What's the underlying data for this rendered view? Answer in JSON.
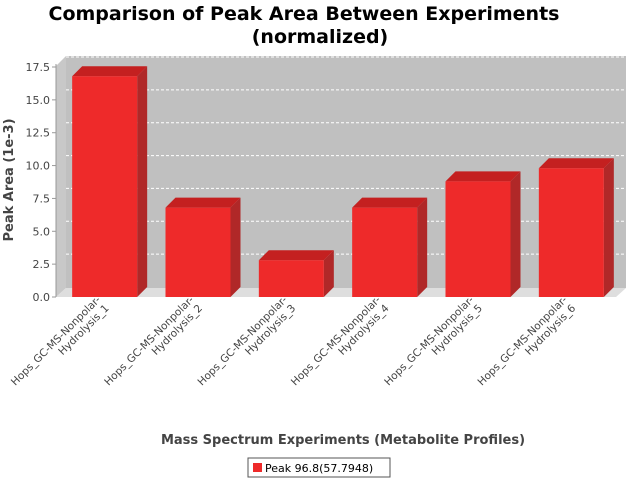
{
  "chart_data": {
    "type": "bar",
    "title": [
      "Comparison of Peak Area Between Experiments",
      "(normalized)"
    ],
    "xlabel": "Mass Spectrum Experiments (Metabolite Profiles)",
    "ylabel": "Peak Area (1e-3)",
    "ylim": [
      0,
      17.5
    ],
    "yticks": [
      0.0,
      2.5,
      5.0,
      7.5,
      10.0,
      12.5,
      15.0,
      17.5
    ],
    "ytick_labels": [
      "0.0",
      "2.5",
      "5.0",
      "7.5",
      "10.0",
      "12.5",
      "15.0",
      "17.5"
    ],
    "grid": true,
    "legend_position": "bottom",
    "categories": [
      [
        "Hops_GC-MS-Nonpolar-",
        "Hydrolysis_1"
      ],
      [
        "Hops_GC-MS-Nonpolar-",
        "Hydrolysis_2"
      ],
      [
        "Hops_GC-MS-Nonpolar-",
        "Hydrolysis_3"
      ],
      [
        "Hops_GC-MS-Nonpolar-",
        "Hydrolysis_4"
      ],
      [
        "Hops_GC-MS-Nonpolar-",
        "Hydrolysis_5"
      ],
      [
        "Hops_GC-MS-Nonpolar-",
        "Hydrolysis_6"
      ]
    ],
    "series": [
      {
        "name": "Peak 96.8(57.7948)",
        "color": "#ee2a2a",
        "values": [
          16.8,
          6.8,
          2.8,
          6.8,
          8.8,
          9.8
        ]
      }
    ]
  }
}
